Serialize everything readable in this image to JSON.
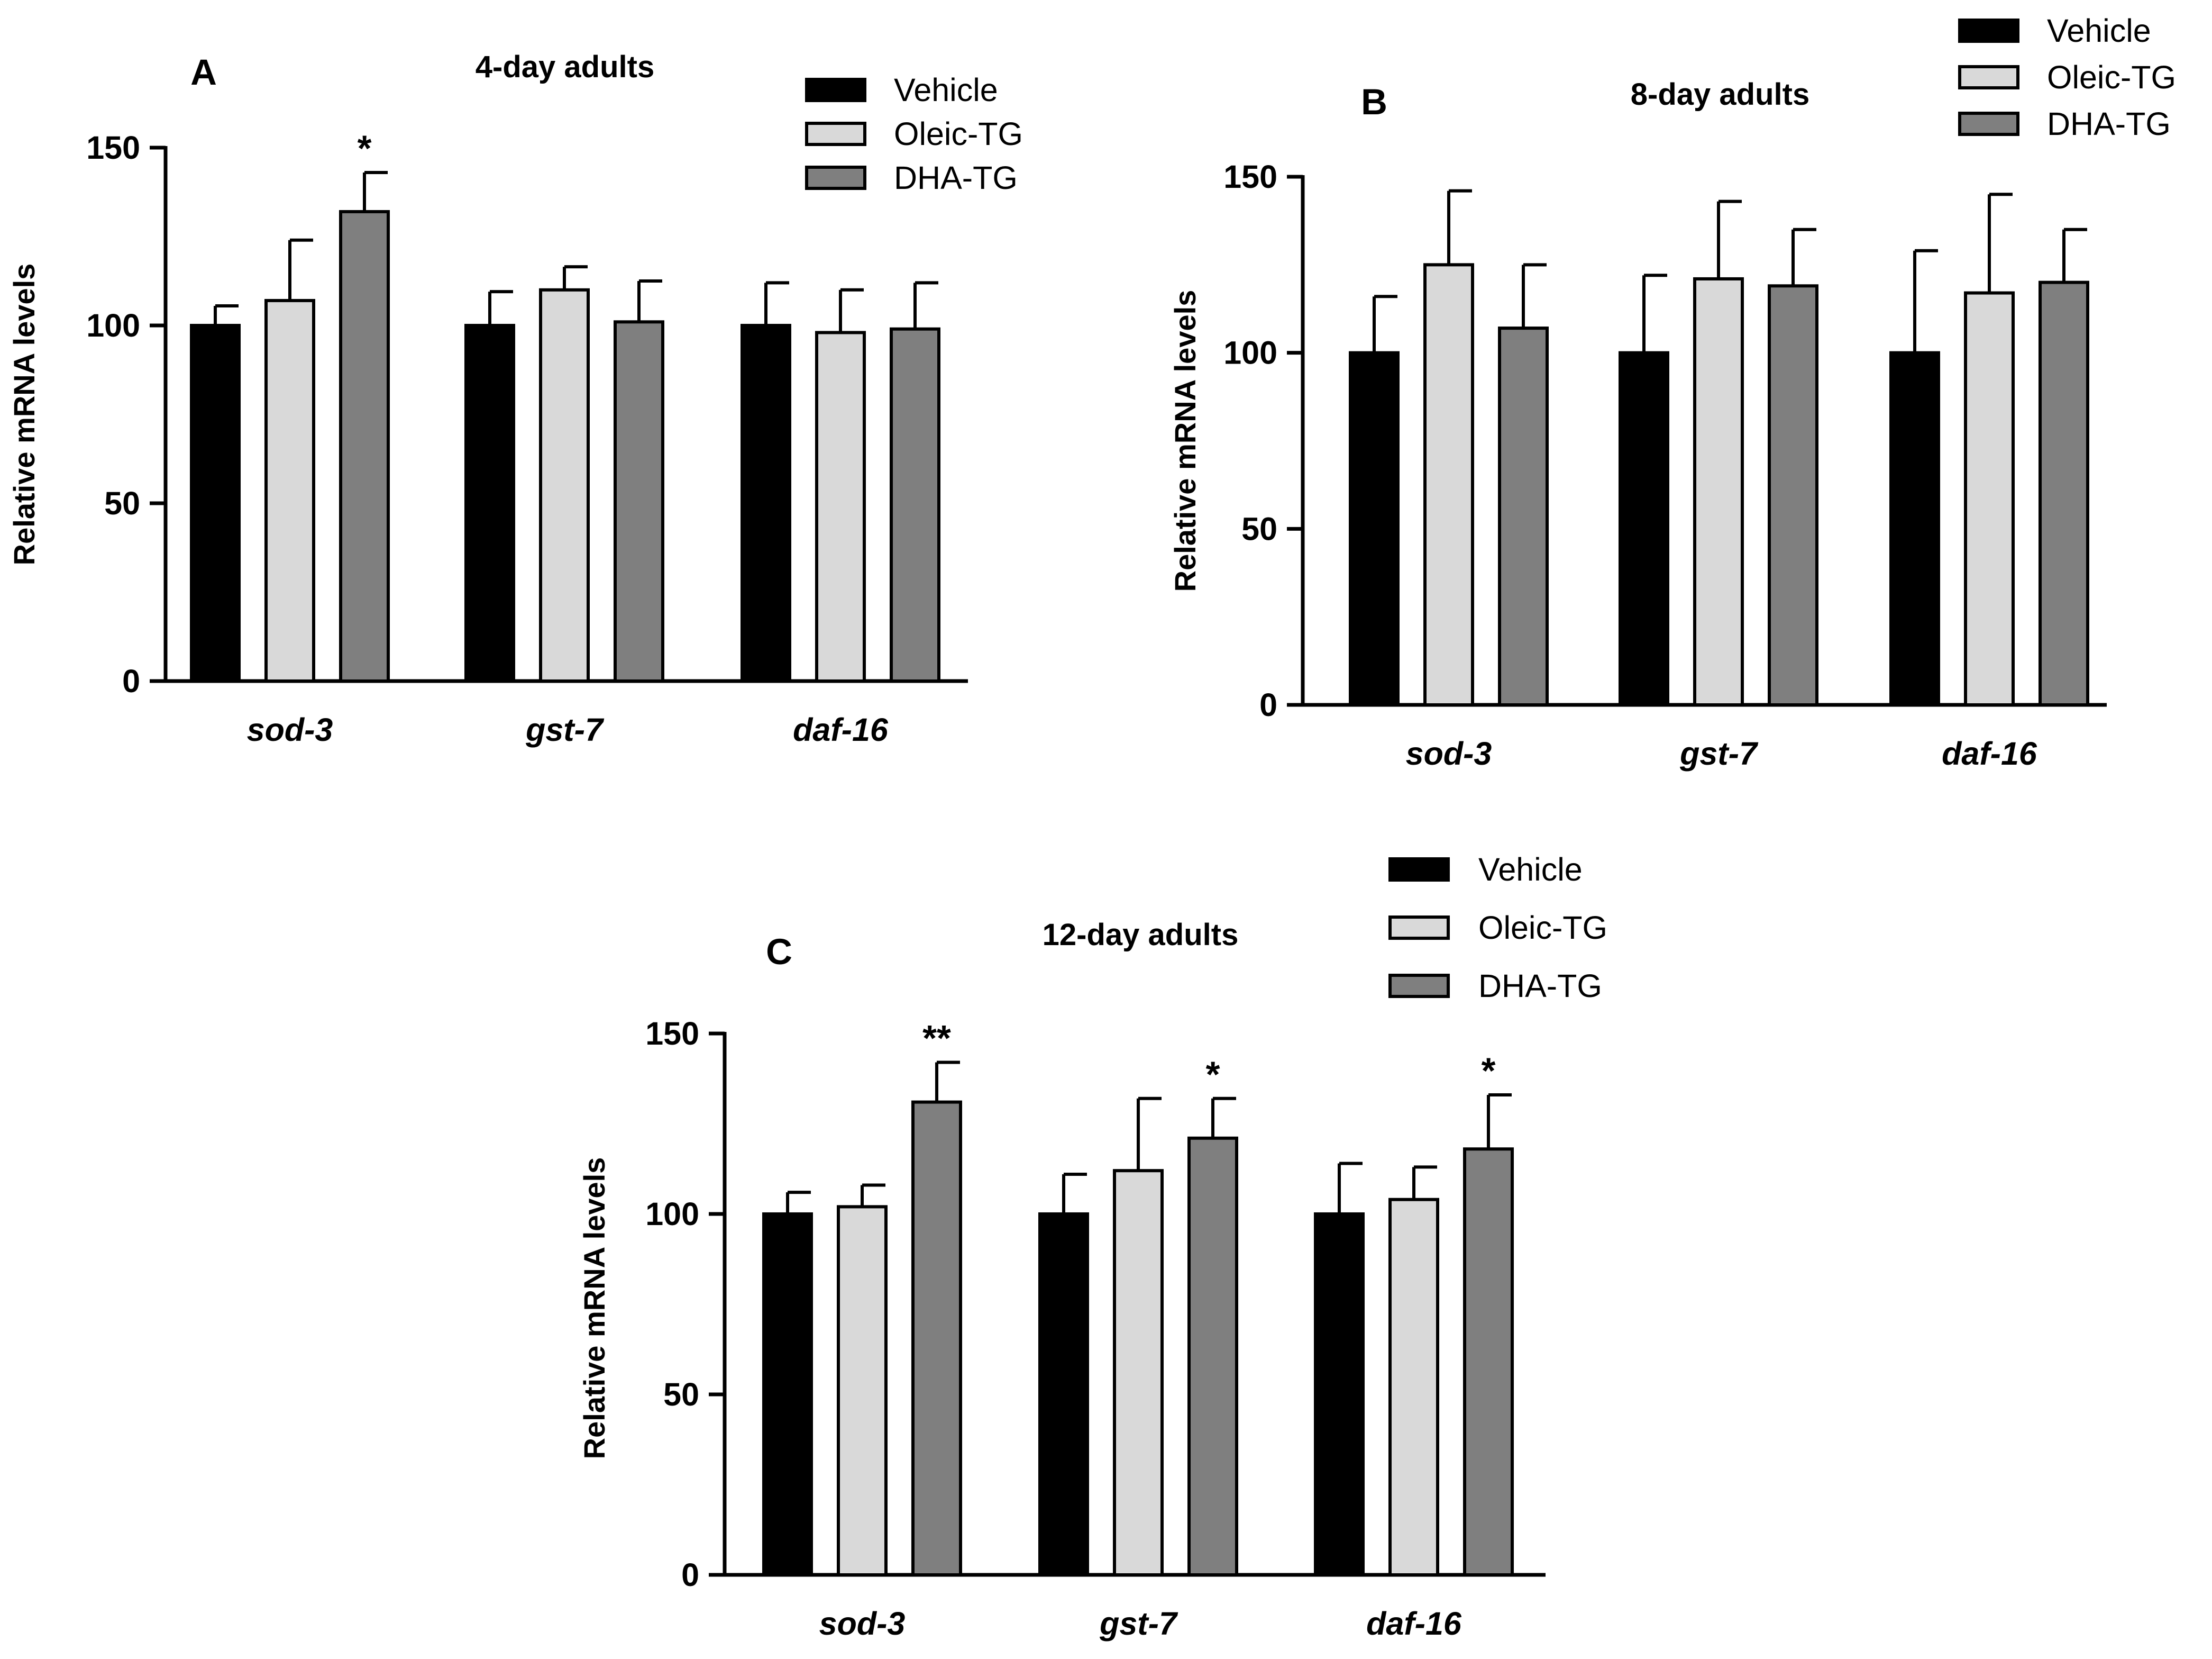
{
  "palette": {
    "Vehicle": "#000000",
    "Oleic-TG": "#d9d9d9",
    "DHA-TG": "#7f7f7f"
  },
  "chart_data": [
    {
      "type": "bar",
      "panel": "A",
      "title": "4-day adults",
      "xlabel": "",
      "ylabel": "Relative mRNA levels",
      "ylim": [
        0,
        150
      ],
      "yticks": [
        0,
        50,
        100,
        150
      ],
      "categories": [
        "sod-3",
        "gst-7",
        "daf-16"
      ],
      "series": [
        {
          "name": "Vehicle",
          "values": [
            100,
            100,
            100
          ],
          "errors": [
            5.5,
            9.5,
            12
          ],
          "annotations": [
            "",
            "",
            ""
          ]
        },
        {
          "name": "Oleic-TG",
          "values": [
            107,
            110,
            98
          ],
          "errors": [
            17,
            6.5,
            12
          ],
          "annotations": [
            "",
            "",
            ""
          ]
        },
        {
          "name": "DHA-TG",
          "values": [
            132,
            101,
            99
          ],
          "errors": [
            11,
            11.5,
            13
          ],
          "annotations": [
            "*",
            "",
            ""
          ]
        }
      ],
      "legend": "top-right"
    },
    {
      "type": "bar",
      "panel": "B",
      "title": "8-day adults",
      "xlabel": "",
      "ylabel": "Relative mRNA levels",
      "ylim": [
        0,
        150
      ],
      "yticks": [
        0,
        50,
        100,
        150
      ],
      "categories": [
        "sod-3",
        "gst-7",
        "daf-16"
      ],
      "series": [
        {
          "name": "Vehicle",
          "values": [
            100,
            100,
            100
          ],
          "errors": [
            16,
            22,
            29
          ],
          "annotations": [
            "",
            "",
            ""
          ]
        },
        {
          "name": "Oleic-TG",
          "values": [
            125,
            121,
            117
          ],
          "errors": [
            21,
            22,
            28
          ],
          "annotations": [
            "",
            "",
            ""
          ]
        },
        {
          "name": "DHA-TG",
          "values": [
            107,
            119,
            120
          ],
          "errors": [
            18,
            16,
            15
          ],
          "annotations": [
            "",
            "",
            ""
          ]
        }
      ],
      "legend": "top-right"
    },
    {
      "type": "bar",
      "panel": "C",
      "title": "12-day adults",
      "xlabel": "",
      "ylabel": "Relative mRNA levels",
      "ylim": [
        0,
        150
      ],
      "yticks": [
        0,
        50,
        100,
        150
      ],
      "categories": [
        "sod-3",
        "gst-7",
        "daf-16"
      ],
      "series": [
        {
          "name": "Vehicle",
          "values": [
            100,
            100,
            100
          ],
          "errors": [
            6,
            11,
            14
          ],
          "annotations": [
            "",
            "",
            ""
          ]
        },
        {
          "name": "Oleic-TG",
          "values": [
            102,
            112,
            104
          ],
          "errors": [
            6,
            20,
            9
          ],
          "annotations": [
            "",
            "",
            ""
          ]
        },
        {
          "name": "DHA-TG",
          "values": [
            131,
            121,
            118
          ],
          "errors": [
            11,
            11,
            15
          ],
          "annotations": [
            "**",
            "*",
            "*"
          ]
        }
      ],
      "legend": "top-right"
    }
  ]
}
